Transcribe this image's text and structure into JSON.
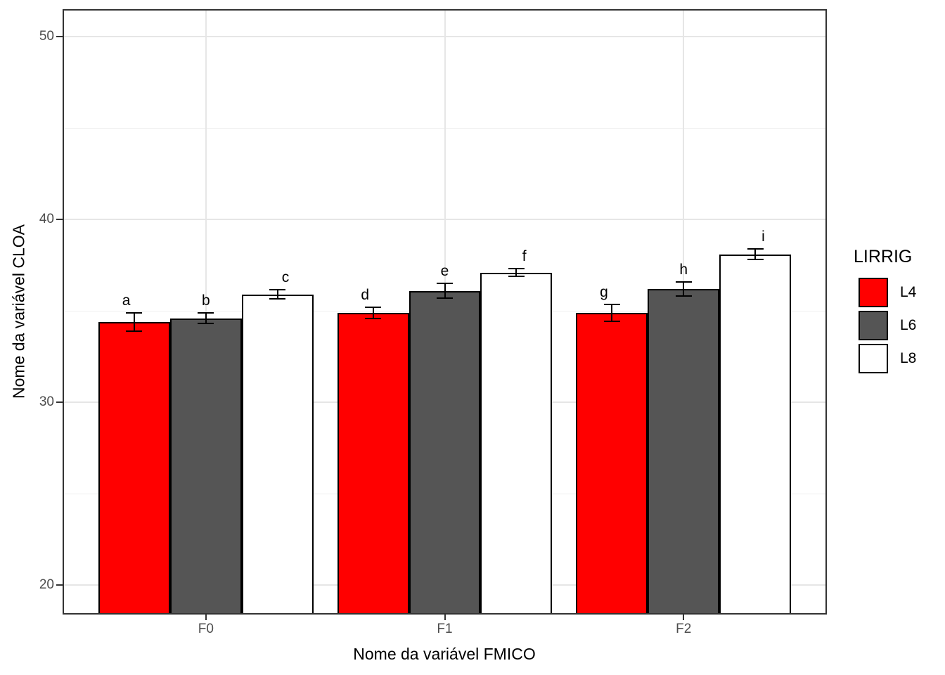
{
  "figure": {
    "background": "#ffffff"
  },
  "chart_data": {
    "type": "bar",
    "title": "",
    "xlabel": "Nome da variável FMICO",
    "ylabel": "Nome da variável CLOA",
    "categories": [
      "F0",
      "F1",
      "F2"
    ],
    "series": [
      {
        "name": "L4",
        "color": "#ff0000",
        "values": [
          34.4,
          34.9,
          34.9
        ],
        "errors": [
          0.5,
          0.3,
          0.45
        ],
        "point_labels": [
          "a",
          "d",
          "g"
        ]
      },
      {
        "name": "L6",
        "color": "#555555",
        "values": [
          34.6,
          36.1,
          36.2
        ],
        "errors": [
          0.3,
          0.4,
          0.37
        ],
        "point_labels": [
          "b",
          "e",
          "h"
        ]
      },
      {
        "name": "L8",
        "color": "#ffffff",
        "values": [
          35.9,
          37.1,
          38.1
        ],
        "errors": [
          0.25,
          0.22,
          0.3
        ],
        "point_labels": [
          "c",
          "f",
          "i"
        ]
      }
    ],
    "ylim": [
      18.4,
      51.5
    ],
    "yticks": [
      20,
      30,
      40,
      50
    ],
    "yticks_minor": [
      25,
      35,
      45
    ],
    "grid": true,
    "bar_outline_color": "#000000",
    "error_bar_color": "#000000",
    "legend": {
      "title": "LIRRIG",
      "position": "right",
      "entries": [
        "L4",
        "L6",
        "L8"
      ]
    }
  }
}
